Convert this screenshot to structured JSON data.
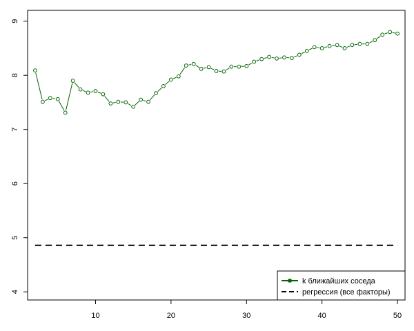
{
  "chart_data": {
    "type": "line",
    "title": "",
    "xlabel": "",
    "ylabel": "",
    "xlim": [
      1,
      51
    ],
    "ylim": [
      3.85,
      9.2
    ],
    "x_ticks": [
      10,
      20,
      30,
      40,
      50
    ],
    "y_ticks": [
      4,
      5,
      6,
      7,
      8,
      9
    ],
    "grid": false,
    "legend_position": "bottom-right",
    "series": [
      {
        "name": "k ближайших соседа",
        "style": "solid-with-open-circles",
        "color": "#006400",
        "x": [
          2,
          3,
          4,
          5,
          6,
          7,
          8,
          9,
          10,
          11,
          12,
          13,
          14,
          15,
          16,
          17,
          18,
          19,
          20,
          21,
          22,
          23,
          24,
          25,
          26,
          27,
          28,
          29,
          30,
          31,
          32,
          33,
          34,
          35,
          36,
          37,
          38,
          39,
          40,
          41,
          42,
          43,
          44,
          45,
          46,
          47,
          48,
          49,
          50
        ],
        "y": [
          8.09,
          7.51,
          7.58,
          7.56,
          7.31,
          7.9,
          7.74,
          7.68,
          7.71,
          7.65,
          7.48,
          7.51,
          7.5,
          7.42,
          7.55,
          7.51,
          7.67,
          7.8,
          7.92,
          7.98,
          8.18,
          8.21,
          8.12,
          8.15,
          8.08,
          8.07,
          8.16,
          8.16,
          8.17,
          8.25,
          8.3,
          8.34,
          8.31,
          8.33,
          8.32,
          8.38,
          8.45,
          8.52,
          8.5,
          8.54,
          8.56,
          8.5,
          8.56,
          8.58,
          8.58,
          8.65,
          8.75,
          8.8,
          8.77
        ]
      },
      {
        "name": "регрессия (все факторы)",
        "style": "dashed",
        "color": "#000000",
        "x": [
          2,
          50
        ],
        "y": [
          4.86,
          4.86
        ]
      }
    ]
  }
}
